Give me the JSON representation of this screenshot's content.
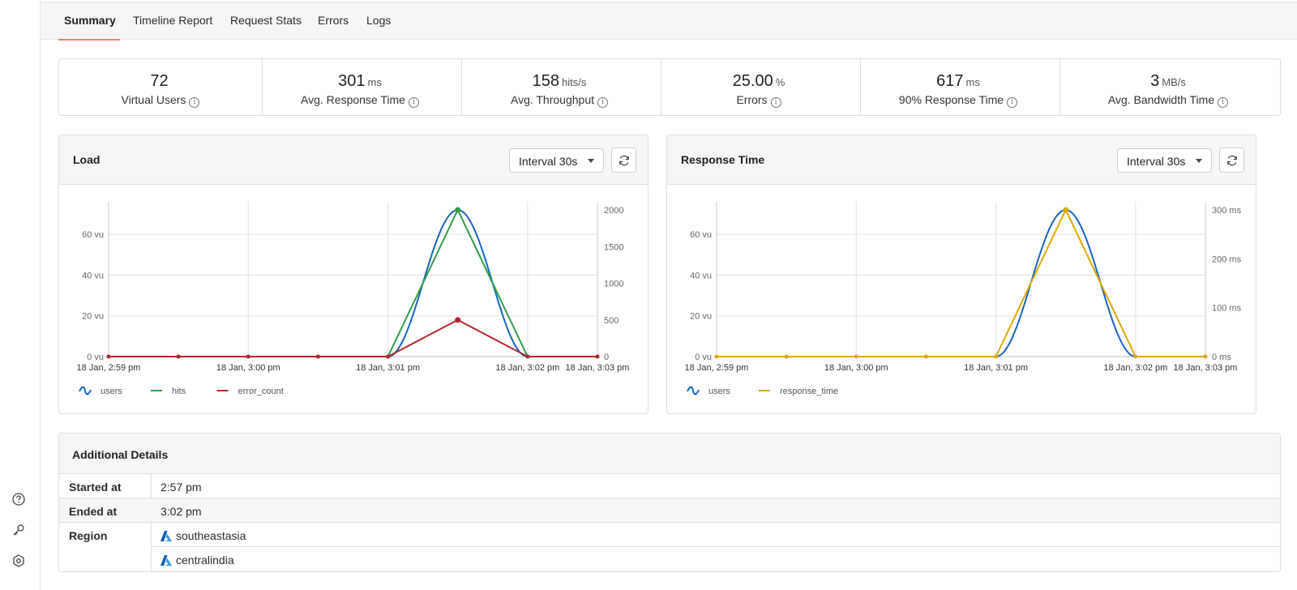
{
  "tabs": [
    {
      "label": "Summary",
      "active": true
    },
    {
      "label": "Timeline Report",
      "active": false
    },
    {
      "label": "Request Stats",
      "active": false
    },
    {
      "label": "Errors",
      "active": false
    },
    {
      "label": "Logs",
      "active": false
    }
  ],
  "stats": [
    {
      "value": "72",
      "unit": "",
      "label": "Virtual Users"
    },
    {
      "value": "301",
      "unit": "ms",
      "label": "Avg. Response Time"
    },
    {
      "value": "158",
      "unit": "hits/s",
      "label": "Avg. Throughput"
    },
    {
      "value": "25.00",
      "unit": "%",
      "label": "Errors"
    },
    {
      "value": "617",
      "unit": "ms",
      "label": "90% Response Time"
    },
    {
      "value": "3",
      "unit": "MB/s",
      "label": "Avg. Bandwidth Time"
    }
  ],
  "load_card": {
    "title": "Load",
    "interval": "Interval 30s"
  },
  "response_card": {
    "title": "Response Time",
    "interval": "Interval 30s"
  },
  "chart_data": [
    {
      "type": "line",
      "title": "Load",
      "x": [
        "18 Jan, 2:59 pm",
        "",
        "18 Jan, 3:00 pm",
        "",
        "18 Jan, 3:01 pm",
        "",
        "18 Jan, 3:02 pm",
        "18 Jan, 3:03 pm"
      ],
      "x_ticks": [
        "18 Jan, 2:59 pm",
        "18 Jan, 3:00 pm",
        "18 Jan, 3:01 pm",
        "18 Jan, 3:02 pm",
        "18 Jan, 3:03 pm"
      ],
      "y_left_ticks": [
        "0 vu",
        "20 vu",
        "40 vu",
        "60 vu"
      ],
      "y_left_lim": [
        0,
        72
      ],
      "y_right_ticks": [
        "0",
        "500",
        "1000",
        "1500",
        "2000"
      ],
      "y_right_lim": [
        0,
        2000
      ],
      "legend_position": "bottom-left",
      "grid": true,
      "series": [
        {
          "name": "users",
          "axis": "left",
          "smooth": true,
          "color": "#1565c0",
          "values": [
            0,
            0,
            0,
            0,
            0,
            72,
            0,
            0
          ]
        },
        {
          "name": "hits",
          "axis": "right",
          "smooth": false,
          "color": "#2e9e48",
          "values": [
            0,
            0,
            0,
            0,
            0,
            2000,
            0,
            0
          ]
        },
        {
          "name": "error_count",
          "axis": "right",
          "smooth": false,
          "color": "#b3262e",
          "values": [
            0,
            0,
            0,
            0,
            0,
            500,
            0,
            0
          ]
        }
      ]
    },
    {
      "type": "line",
      "title": "Response Time",
      "x": [
        "18 Jan, 2:59 pm",
        "",
        "18 Jan, 3:00 pm",
        "",
        "18 Jan, 3:01 pm",
        "",
        "18 Jan, 3:02 pm",
        "18 Jan, 3:03 pm"
      ],
      "x_ticks": [
        "18 Jan, 2:59 pm",
        "18 Jan, 3:00 pm",
        "18 Jan, 3:01 pm",
        "18 Jan, 3:02 pm",
        "18 Jan, 3:03 pm"
      ],
      "y_left_ticks": [
        "0 vu",
        "20 vu",
        "40 vu",
        "60 vu"
      ],
      "y_left_lim": [
        0,
        72
      ],
      "y_right_ticks": [
        "0 ms",
        "100 ms",
        "200 ms",
        "300 ms"
      ],
      "y_right_lim": [
        0,
        300
      ],
      "legend_position": "bottom-left",
      "grid": true,
      "series": [
        {
          "name": "users",
          "axis": "left",
          "smooth": true,
          "color": "#1565c0",
          "values": [
            0,
            0,
            0,
            0,
            0,
            72,
            0,
            0
          ]
        },
        {
          "name": "response_time",
          "axis": "right",
          "smooth": false,
          "color": "#e0a800",
          "values": [
            0,
            0,
            0,
            0,
            0,
            300,
            0,
            0
          ]
        }
      ]
    }
  ],
  "details": {
    "title": "Additional Details",
    "started_label": "Started at",
    "started_value": "2:57 pm",
    "ended_label": "Ended at",
    "ended_value": "3:02 pm",
    "region_label": "Region",
    "regions": [
      "southeastasia",
      "centralindia"
    ]
  },
  "icons": [
    "help-icon",
    "key-icon",
    "settings-icon",
    "refresh-icon",
    "info-icon",
    "azure-icon"
  ]
}
